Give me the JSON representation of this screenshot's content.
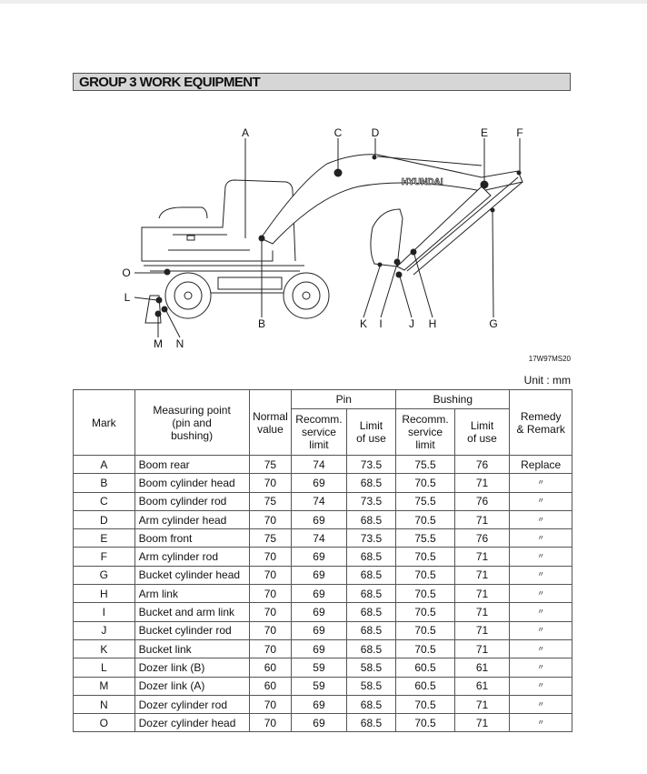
{
  "title": "GROUP 3 WORK EQUIPMENT",
  "figure": {
    "brand_text": "HYUNDAI",
    "figure_id": "17W97MS20",
    "labels": {
      "A": "A",
      "B": "B",
      "C": "C",
      "D": "D",
      "E": "E",
      "F": "F",
      "G": "G",
      "H": "H",
      "I": "I",
      "J": "J",
      "K": "K",
      "L": "L",
      "M": "M",
      "N": "N",
      "O": "O"
    }
  },
  "unit": "Unit : mm",
  "table": {
    "headers": {
      "mark": "Mark",
      "measuring_point": "Measuring point (pin and bushing)",
      "normal_value": "Normal value",
      "pin": "Pin",
      "bushing": "Bushing",
      "recomm": "Recomm. service limit",
      "limit": "Limit of use",
      "remedy": "Remedy & Remark"
    },
    "rows": [
      {
        "mark": "A",
        "point": "Boom rear",
        "normal": "75",
        "pin_recomm": "74",
        "pin_limit": "73.5",
        "bush_recomm": "75.5",
        "bush_limit": "76",
        "remedy": "Replace"
      },
      {
        "mark": "B",
        "point": "Boom cylinder head",
        "normal": "70",
        "pin_recomm": "69",
        "pin_limit": "68.5",
        "bush_recomm": "70.5",
        "bush_limit": "71",
        "remedy": "〃"
      },
      {
        "mark": "C",
        "point": "Boom cylinder rod",
        "normal": "75",
        "pin_recomm": "74",
        "pin_limit": "73.5",
        "bush_recomm": "75.5",
        "bush_limit": "76",
        "remedy": "〃"
      },
      {
        "mark": "D",
        "point": "Arm cylinder head",
        "normal": "70",
        "pin_recomm": "69",
        "pin_limit": "68.5",
        "bush_recomm": "70.5",
        "bush_limit": "71",
        "remedy": "〃"
      },
      {
        "mark": "E",
        "point": "Boom front",
        "normal": "75",
        "pin_recomm": "74",
        "pin_limit": "73.5",
        "bush_recomm": "75.5",
        "bush_limit": "76",
        "remedy": "〃"
      },
      {
        "mark": "F",
        "point": "Arm cylinder rod",
        "normal": "70",
        "pin_recomm": "69",
        "pin_limit": "68.5",
        "bush_recomm": "70.5",
        "bush_limit": "71",
        "remedy": "〃"
      },
      {
        "mark": "G",
        "point": "Bucket cylinder head",
        "normal": "70",
        "pin_recomm": "69",
        "pin_limit": "68.5",
        "bush_recomm": "70.5",
        "bush_limit": "71",
        "remedy": "〃"
      },
      {
        "mark": "H",
        "point": "Arm link",
        "normal": "70",
        "pin_recomm": "69",
        "pin_limit": "68.5",
        "bush_recomm": "70.5",
        "bush_limit": "71",
        "remedy": "〃"
      },
      {
        "mark": "I",
        "point": "Bucket and arm link",
        "normal": "70",
        "pin_recomm": "69",
        "pin_limit": "68.5",
        "bush_recomm": "70.5",
        "bush_limit": "71",
        "remedy": "〃"
      },
      {
        "mark": "J",
        "point": "Bucket cylinder rod",
        "normal": "70",
        "pin_recomm": "69",
        "pin_limit": "68.5",
        "bush_recomm": "70.5",
        "bush_limit": "71",
        "remedy": "〃"
      },
      {
        "mark": "K",
        "point": "Bucket link",
        "normal": "70",
        "pin_recomm": "69",
        "pin_limit": "68.5",
        "bush_recomm": "70.5",
        "bush_limit": "71",
        "remedy": "〃"
      },
      {
        "mark": "L",
        "point": "Dozer link (B)",
        "normal": "60",
        "pin_recomm": "59",
        "pin_limit": "58.5",
        "bush_recomm": "60.5",
        "bush_limit": "61",
        "remedy": "〃"
      },
      {
        "mark": "M",
        "point": "Dozer link (A)",
        "normal": "60",
        "pin_recomm": "59",
        "pin_limit": "58.5",
        "bush_recomm": "60.5",
        "bush_limit": "61",
        "remedy": "〃"
      },
      {
        "mark": "N",
        "point": "Dozer cylinder rod",
        "normal": "70",
        "pin_recomm": "69",
        "pin_limit": "68.5",
        "bush_recomm": "70.5",
        "bush_limit": "71",
        "remedy": "〃"
      },
      {
        "mark": "O",
        "point": "Dozer cylinder head",
        "normal": "70",
        "pin_recomm": "69",
        "pin_limit": "68.5",
        "bush_recomm": "70.5",
        "bush_limit": "71",
        "remedy": "〃"
      }
    ]
  }
}
